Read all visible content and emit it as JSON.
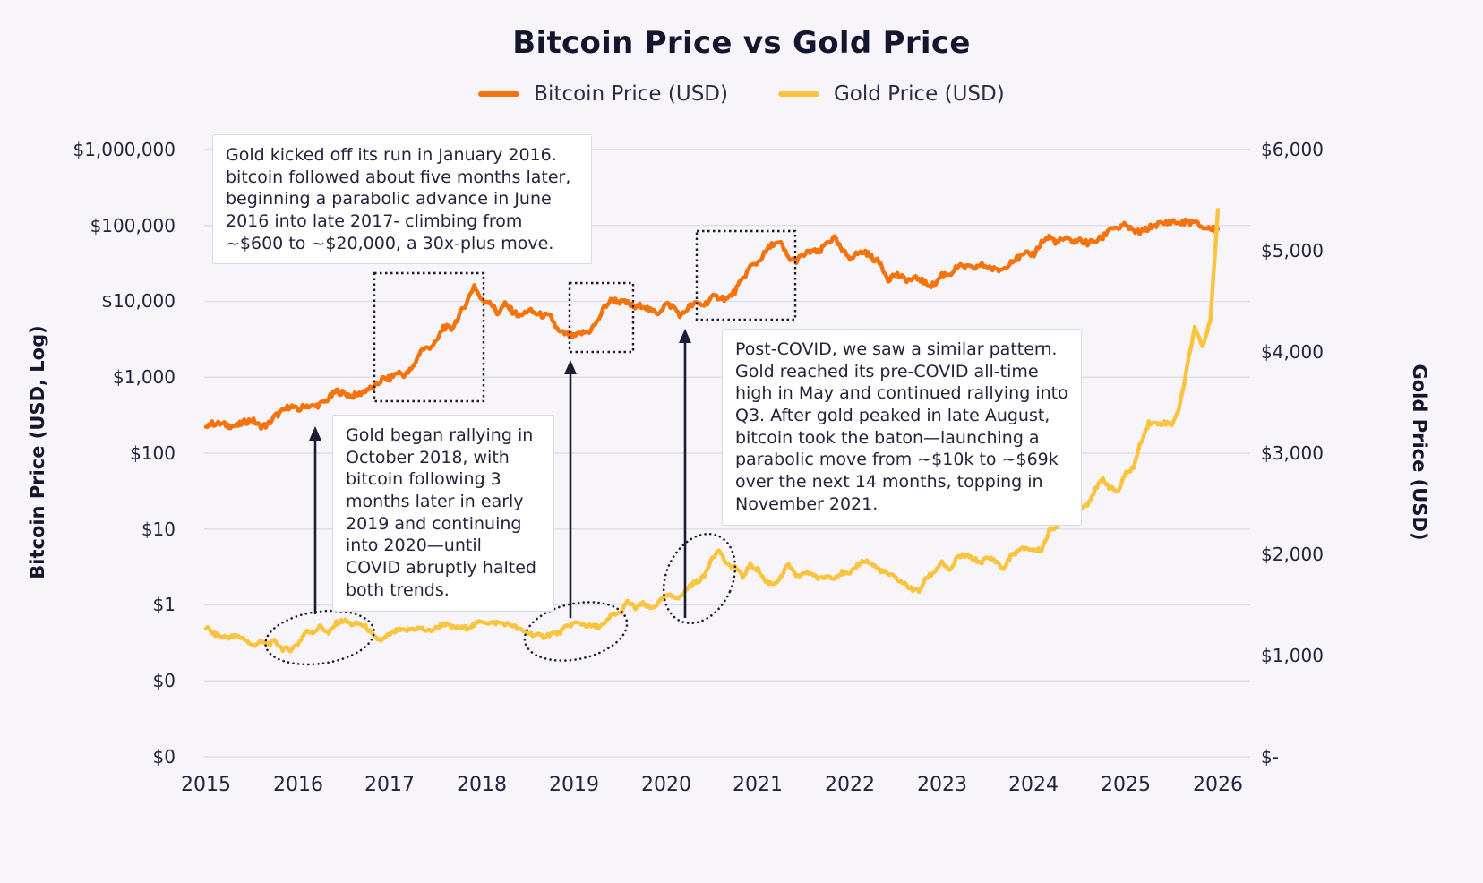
{
  "title": "Bitcoin Price vs Gold Price",
  "legend": {
    "bitcoin": {
      "label": "Bitcoin Price (USD)",
      "color": "#f4730c"
    },
    "gold": {
      "label": "Gold Price (USD)",
      "color": "#f9c440"
    }
  },
  "axes": {
    "left": {
      "title": "Bitcoin Price (USD, Log)",
      "ticks": [
        "$1,000,000",
        "$100,000",
        "$10,000",
        "$1,000",
        "$100",
        "$10",
        "$1",
        "$0",
        "$0"
      ]
    },
    "right": {
      "title": "Gold Price (USD)",
      "ticks": [
        "$6,000",
        "$5,000",
        "$4,000",
        "$3,000",
        "$2,000",
        "$1,000",
        "$-"
      ]
    },
    "x": {
      "ticks": [
        "2015",
        "2016",
        "2017",
        "2018",
        "2019",
        "2020",
        "2021",
        "2022",
        "2023",
        "2024",
        "2025",
        "2026"
      ]
    }
  },
  "annotations": [
    {
      "text": "Gold kicked off its run in January 2016. bitcoin followed about five months later, beginning a parabolic advance in June 2016 into late 2017- climbing from ~$600 to ~$20,000, a 30x-plus move."
    },
    {
      "text": "Gold began rallying in October 2018, with bitcoin following 3 months later in early 2019 and continuing into 2020—until COVID abruptly halted both trends."
    },
    {
      "text": "Post-COVID, we saw a similar pattern. Gold reached its pre-COVID all-time high in May and continued rallying into Q3. After gold peaked in late August, bitcoin took the baton—launching a parabolic move from ~$10k to ~$69k over the next 14 months, topping in November 2021."
    }
  ],
  "chart_data": {
    "type": "line",
    "title": "Bitcoin Price vs Gold Price",
    "x_unit": "monthly samples, Jan 2015 - Jan 2026 (decimal years)",
    "x_start": 2015.0,
    "x_step_years": 0.0833333,
    "x_range": [
      2015,
      2026
    ],
    "grid": "horizontal",
    "legend_position": "top",
    "left_axis": {
      "label": "Bitcoin Price (USD, Log)",
      "scale": "log",
      "tick_values": [
        1000000,
        100000,
        10000,
        1000,
        100,
        10,
        1,
        0.1,
        0
      ]
    },
    "right_axis": {
      "label": "Gold Price (USD)",
      "scale": "linear",
      "range": [
        0,
        6000
      ]
    },
    "series": [
      {
        "name": "Bitcoin Price (USD)",
        "color": "#f4730c",
        "axis": "left",
        "scale": "log",
        "values": [
          240,
          250,
          245,
          235,
          230,
          260,
          280,
          230,
          235,
          310,
          360,
          430,
          370,
          435,
          415,
          450,
          530,
          670,
          620,
          575,
          610,
          700,
          745,
          960,
          970,
          1180,
          1080,
          1350,
          2300,
          2480,
          2870,
          4700,
          4340,
          6450,
          9900,
          16500,
          10200,
          10300,
          7000,
          9250,
          7500,
          6400,
          7750,
          7000,
          6600,
          6300,
          4000,
          3740,
          3460,
          3850,
          4100,
          5350,
          8560,
          10800,
          10000,
          9600,
          8300,
          9150,
          7550,
          7200,
          9350,
          8550,
          6450,
          8650,
          9450,
          9140,
          11350,
          11650,
          10780,
          13800,
          19700,
          29000,
          33100,
          45200,
          58800,
          57750,
          37300,
          35000,
          41500,
          47100,
          43800,
          61300,
          69000,
          46200,
          38500,
          43200,
          45500,
          37650,
          31800,
          19900,
          23300,
          20050,
          19400,
          20500,
          17150,
          16550,
          23100,
          23150,
          28500,
          29250,
          27200,
          30450,
          29250,
          25950,
          26950,
          34650,
          37700,
          42250,
          42550,
          61150,
          71300,
          60600,
          67500,
          62700,
          64600,
          59000,
          63300,
          70200,
          96400,
          93400,
          102400,
          84350,
          82550,
          94200,
          104600,
          107100,
          115800,
          108200,
          114000,
          110000,
          96000,
          92000,
          90000
        ]
      },
      {
        "name": "Gold Price (USD)",
        "color": "#f9c440",
        "axis": "right",
        "scale": "linear",
        "values": [
          1280,
          1215,
          1185,
          1185,
          1190,
          1170,
          1095,
          1135,
          1115,
          1140,
          1065,
          1060,
          1115,
          1235,
          1235,
          1290,
          1215,
          1320,
          1350,
          1310,
          1315,
          1275,
          1175,
          1150,
          1210,
          1250,
          1245,
          1265,
          1270,
          1240,
          1270,
          1320,
          1280,
          1270,
          1275,
          1300,
          1345,
          1320,
          1325,
          1315,
          1300,
          1250,
          1225,
          1200,
          1190,
          1215,
          1220,
          1280,
          1320,
          1315,
          1290,
          1285,
          1305,
          1410,
          1415,
          1530,
          1470,
          1510,
          1465,
          1515,
          1590,
          1585,
          1580,
          1685,
          1730,
          1780,
          1975,
          2040,
          1885,
          1880,
          1775,
          1895,
          1850,
          1730,
          1710,
          1770,
          1905,
          1770,
          1815,
          1815,
          1755,
          1785,
          1775,
          1820,
          1795,
          1900,
          1940,
          1895,
          1840,
          1805,
          1765,
          1715,
          1660,
          1635,
          1770,
          1825,
          1930,
          1825,
          1970,
          1990,
          1960,
          1920,
          1965,
          1940,
          1850,
          1985,
          2035,
          2065,
          2040,
          2045,
          2230,
          2285,
          2325,
          2325,
          2445,
          2500,
          2635,
          2745,
          2650,
          2625,
          2800,
          2860,
          3120,
          3300,
          3290,
          3300,
          3290,
          3450,
          3860,
          4250,
          4050,
          4300,
          5400
        ]
      }
    ]
  }
}
